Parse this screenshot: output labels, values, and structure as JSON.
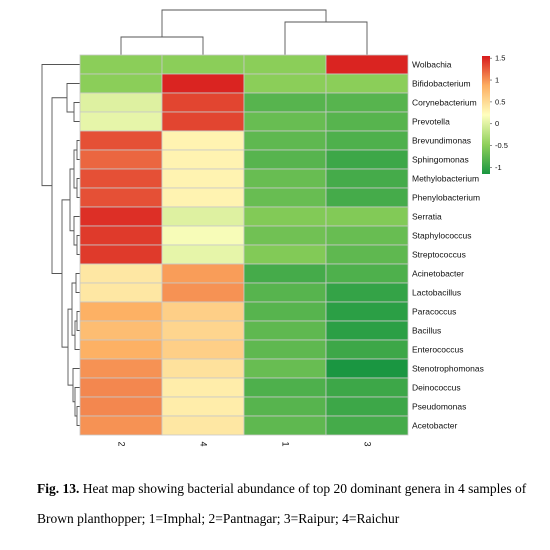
{
  "chart_data": {
    "type": "heatmap",
    "columns": [
      "2",
      "4",
      "1",
      "3"
    ],
    "rows": [
      "Wolbachia",
      "Bifidobacterium",
      "Corynebacterium",
      "Prevotella",
      "Brevundimonas",
      "Sphingomonas",
      "Methylobacterium",
      "Phenylobacterium",
      "Serratia",
      "Staphylococcus",
      "Streptococcus",
      "Acinetobacter",
      "Lactobacillus",
      "Paracoccus",
      "Bacillus",
      "Enterococcus",
      "Stenotrophomonas",
      "Deinococcus",
      "Pseudomonas",
      "Acetobacter"
    ],
    "values": [
      [
        -0.5,
        -0.5,
        -0.5,
        1.5
      ],
      [
        -0.5,
        1.5,
        -0.5,
        -0.5
      ],
      [
        0.0,
        1.35,
        -0.8,
        -0.8
      ],
      [
        0.05,
        1.35,
        -0.7,
        -0.8
      ],
      [
        1.3,
        0.3,
        -0.75,
        -0.85
      ],
      [
        1.2,
        0.3,
        -0.8,
        -0.95
      ],
      [
        1.3,
        0.3,
        -0.7,
        -0.9
      ],
      [
        1.3,
        0.3,
        -0.7,
        -0.9
      ],
      [
        1.45,
        0.0,
        -0.55,
        -0.55
      ],
      [
        1.4,
        0.15,
        -0.65,
        -0.7
      ],
      [
        1.4,
        0.05,
        -0.55,
        -0.75
      ],
      [
        0.4,
        0.95,
        -0.9,
        -0.85
      ],
      [
        0.4,
        1.0,
        -0.8,
        -1.0
      ],
      [
        0.85,
        0.6,
        -0.8,
        -1.05
      ],
      [
        0.75,
        0.55,
        -0.75,
        -1.05
      ],
      [
        0.85,
        0.6,
        -0.75,
        -0.95
      ],
      [
        1.0,
        0.45,
        -0.7,
        -1.15
      ],
      [
        1.05,
        0.35,
        -0.85,
        -0.95
      ],
      [
        1.05,
        0.35,
        -0.8,
        -0.95
      ],
      [
        1.0,
        0.4,
        -0.75,
        -0.9
      ]
    ],
    "legend": {
      "ticks": [
        "1.5",
        "1",
        "0.5",
        "0",
        "-0.5",
        "-1"
      ],
      "tick_values": [
        1.5,
        1,
        0.5,
        0,
        -0.5,
        -1
      ],
      "range": [
        -1.15,
        1.55
      ],
      "colors": [
        "#1a9641",
        "#8fd05a",
        "#ffffbf",
        "#fdae61",
        "#d7191c"
      ]
    },
    "row_dendrogram": true,
    "column_dendrogram": true,
    "grid": false
  },
  "caption": {
    "label": "Fig. 13.",
    "text": " Heat map showing bacterial abundance of top 20 dominant genera in 4 samples of Brown planthopper; 1=Imphal;  2=Pantnagar; 3=Raipur; 4=Raichur"
  }
}
